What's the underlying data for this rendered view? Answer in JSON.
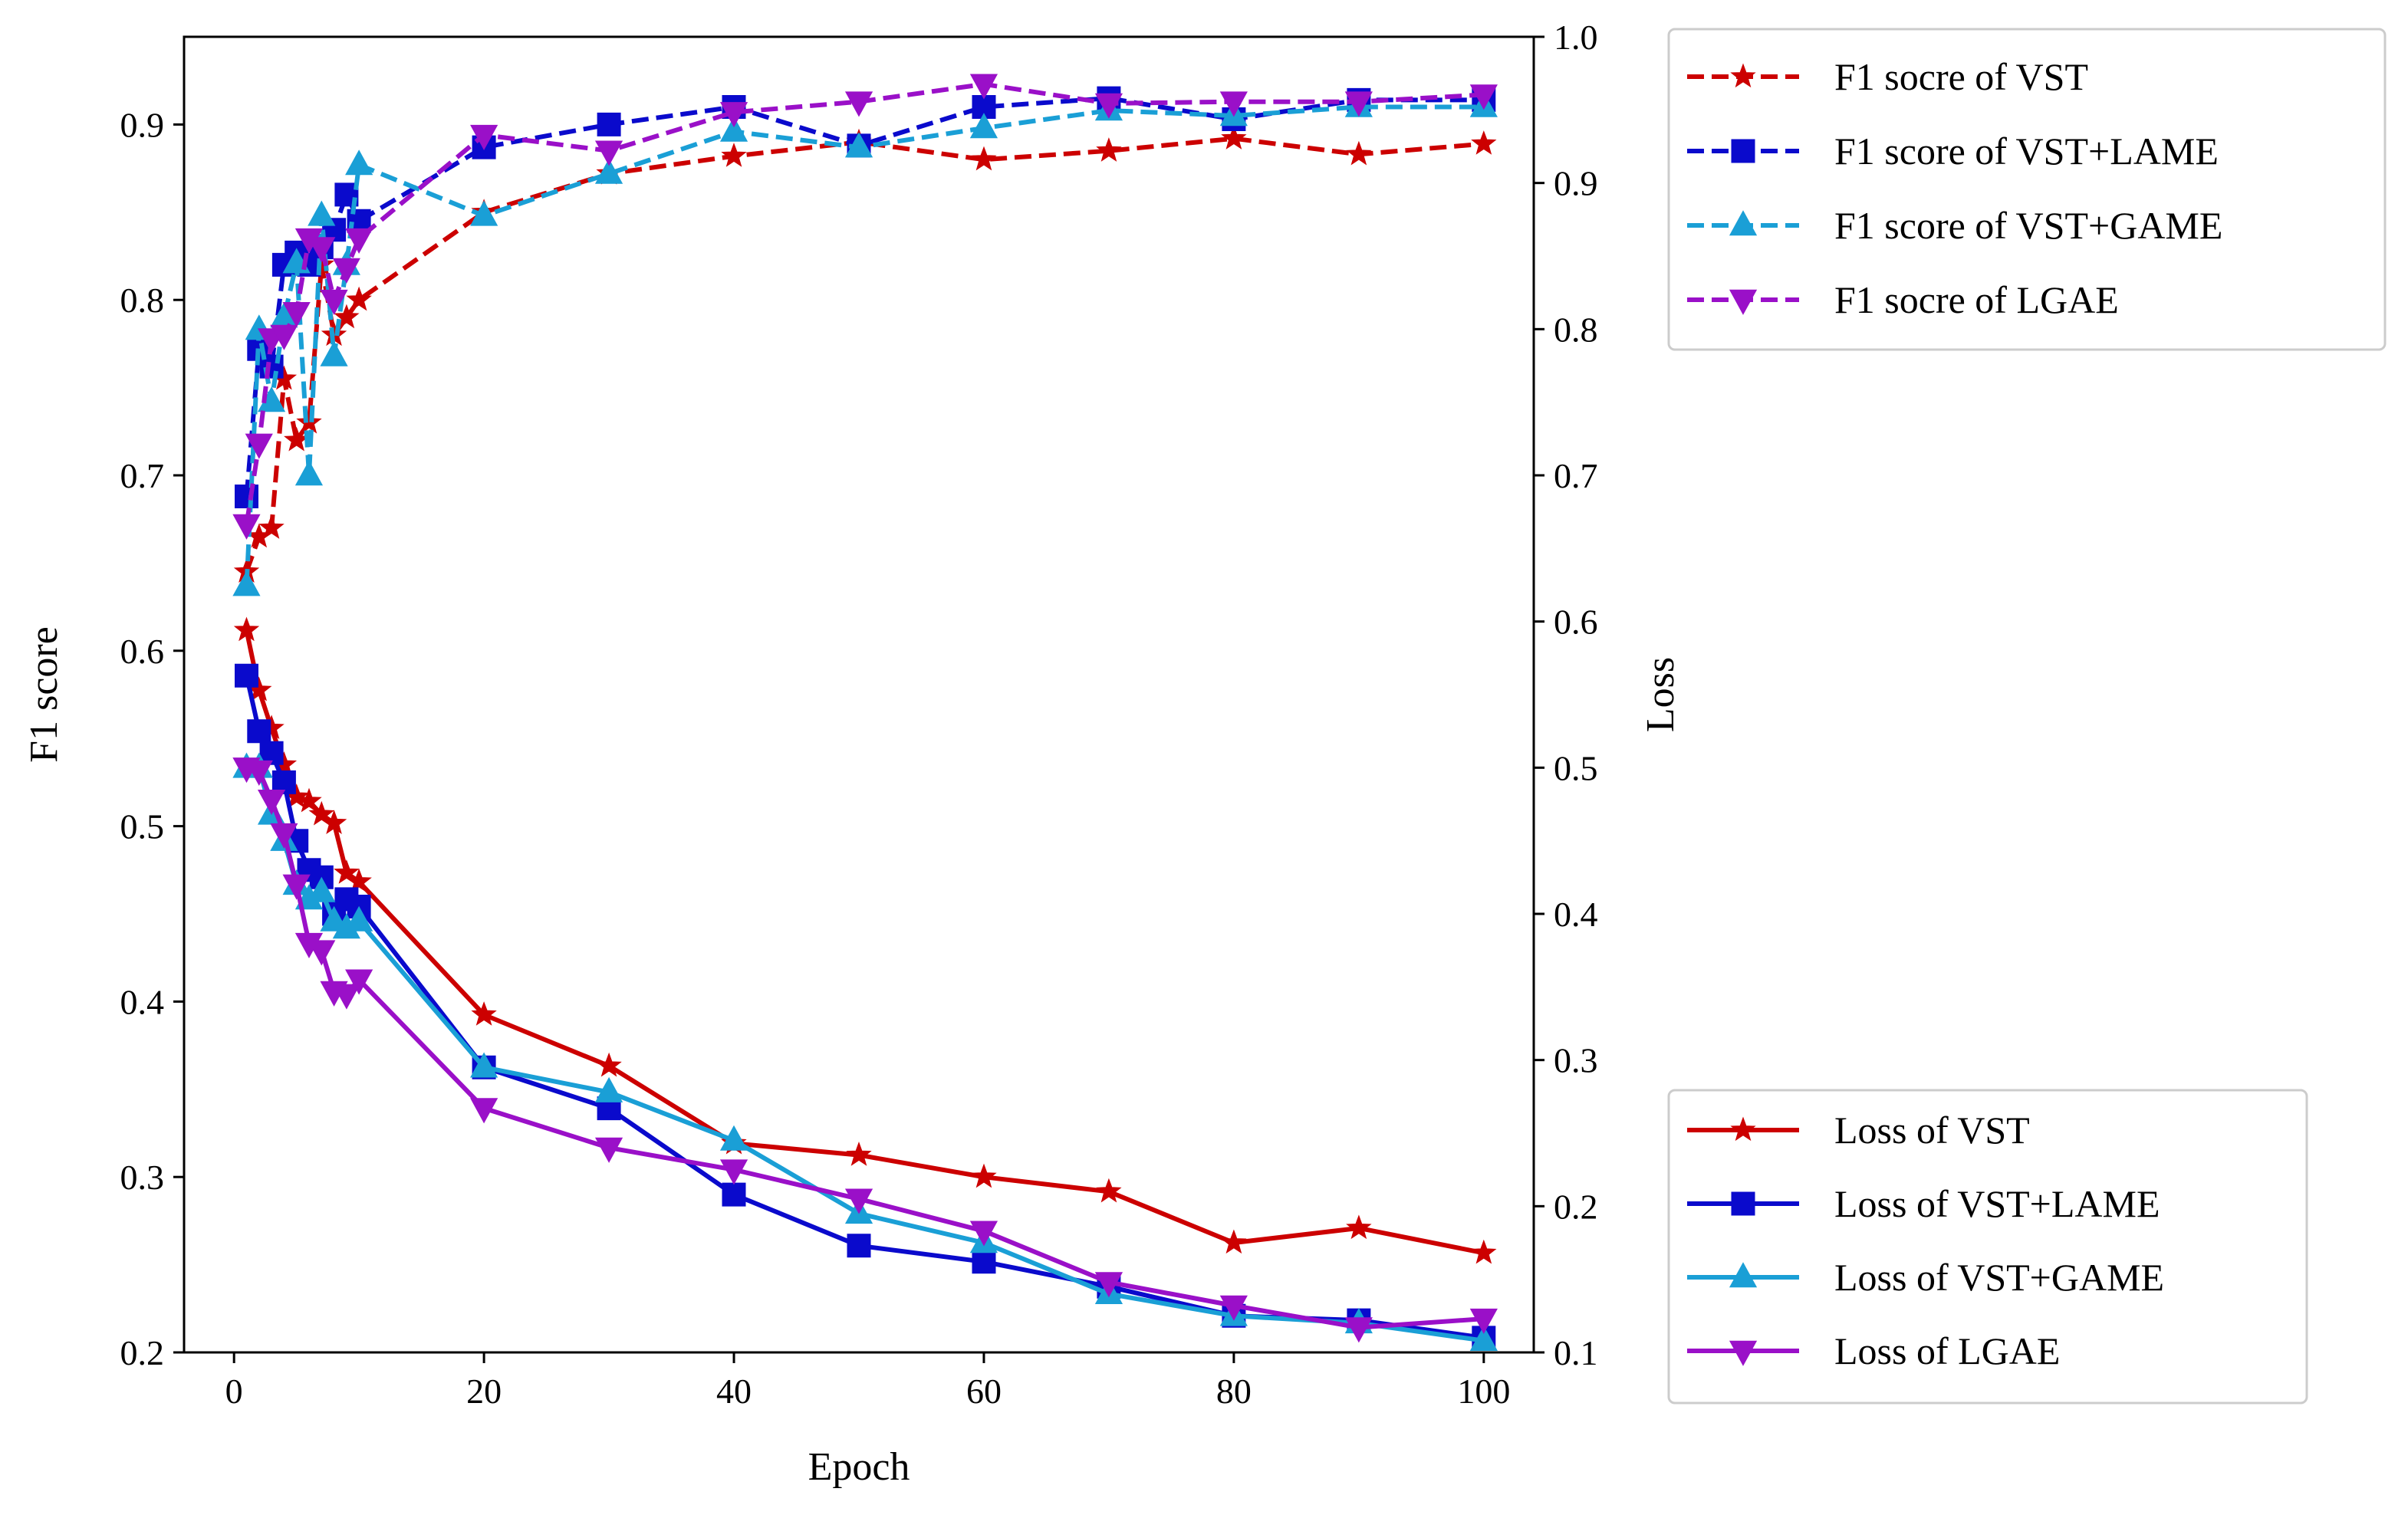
{
  "chart_data": {
    "type": "line",
    "x_axis": {
      "label": "Epoch",
      "range": [
        -4,
        104
      ],
      "ticks": [
        0,
        20,
        40,
        60,
        80,
        100
      ],
      "tick_labels": [
        "0",
        "20",
        "40",
        "60",
        "80",
        "100"
      ]
    },
    "y_axis_left": {
      "label": "F1 score",
      "range": [
        0.2,
        0.95
      ],
      "ticks": [
        0.2,
        0.3,
        0.4,
        0.5,
        0.6,
        0.7,
        0.8,
        0.9
      ],
      "tick_labels": [
        "0.2",
        "0.3",
        "0.4",
        "0.5",
        "0.6",
        "0.7",
        "0.8",
        "0.9"
      ]
    },
    "y_axis_right": {
      "label": "Loss",
      "range": [
        0.1,
        1.0
      ],
      "ticks": [
        0.1,
        0.2,
        0.3,
        0.4,
        0.5,
        0.6,
        0.7,
        0.8,
        0.9,
        1.0
      ],
      "tick_labels": [
        "0.1",
        "0.2",
        "0.3",
        "0.4",
        "0.5",
        "0.6",
        "0.7",
        "0.8",
        "0.9",
        "1.0"
      ]
    },
    "x": [
      1,
      2,
      3,
      4,
      5,
      6,
      7,
      8,
      9,
      10,
      20,
      30,
      40,
      50,
      60,
      70,
      80,
      90,
      100
    ],
    "f1_series": [
      {
        "name": "F1 socre of VST",
        "axis": "left",
        "color": "#cc0000",
        "style": "dashed",
        "marker": "star",
        "values": [
          0.645,
          0.665,
          0.67,
          0.755,
          0.72,
          0.73,
          0.82,
          0.78,
          0.79,
          0.8,
          0.85,
          0.872,
          0.882,
          0.89,
          0.88,
          0.885,
          0.892,
          0.883,
          0.889
        ]
      },
      {
        "name": "F1 score of VST+LAME",
        "axis": "left",
        "color": "#0a0acc",
        "style": "dashed",
        "marker": "square",
        "values": [
          0.688,
          0.772,
          0.762,
          0.82,
          0.827,
          0.82,
          0.83,
          0.84,
          0.86,
          0.845,
          0.887,
          0.9,
          0.91,
          0.888,
          0.91,
          0.915,
          0.903,
          0.914,
          0.914
        ]
      },
      {
        "name": "F1 score of VST+GAME",
        "axis": "left",
        "color": "#1a9fd6",
        "style": "dashed",
        "marker": "triangle-up",
        "values": [
          0.637,
          0.783,
          0.742,
          0.79,
          0.821,
          0.7,
          0.848,
          0.768,
          0.82,
          0.877,
          0.848,
          0.872,
          0.896,
          0.887,
          0.898,
          0.908,
          0.905,
          0.91,
          0.91
        ]
      },
      {
        "name": "F1 socre of LGAE",
        "axis": "left",
        "color": "#9a10c8",
        "style": "dashed",
        "marker": "triangle-down",
        "values": [
          0.672,
          0.718,
          0.778,
          0.78,
          0.793,
          0.835,
          0.83,
          0.8,
          0.818,
          0.835,
          0.894,
          0.885,
          0.907,
          0.913,
          0.923,
          0.912,
          0.913,
          0.913,
          0.917
        ]
      }
    ],
    "loss_series": [
      {
        "name": "Loss of VST",
        "axis": "right",
        "color": "#cc0000",
        "style": "solid",
        "marker": "star",
        "values": [
          0.594,
          0.553,
          0.527,
          0.502,
          0.48,
          0.477,
          0.468,
          0.462,
          0.428,
          0.422,
          0.331,
          0.296,
          0.243,
          0.235,
          0.22,
          0.21,
          0.175,
          0.185,
          0.168
        ]
      },
      {
        "name": "Loss of VST+LAME",
        "axis": "right",
        "color": "#0a0acc",
        "style": "solid",
        "marker": "square",
        "values": [
          0.563,
          0.525,
          0.51,
          0.49,
          0.45,
          0.43,
          0.425,
          0.4,
          0.41,
          0.405,
          0.295,
          0.267,
          0.208,
          0.173,
          0.162,
          0.145,
          0.125,
          0.122,
          0.11
        ]
      },
      {
        "name": "Loss of VST+GAME",
        "axis": "right",
        "color": "#1a9fd6",
        "style": "solid",
        "marker": "triangle-up",
        "values": [
          0.5,
          0.5,
          0.468,
          0.45,
          0.42,
          0.41,
          0.415,
          0.395,
          0.39,
          0.395,
          0.295,
          0.278,
          0.245,
          0.195,
          0.175,
          0.14,
          0.125,
          0.12,
          0.108
        ]
      },
      {
        "name": "Loss of LGAE",
        "axis": "right",
        "color": "#9a10c8",
        "style": "solid",
        "marker": "triangle-down",
        "values": [
          0.5,
          0.498,
          0.478,
          0.455,
          0.42,
          0.38,
          0.375,
          0.347,
          0.345,
          0.355,
          0.267,
          0.24,
          0.225,
          0.205,
          0.183,
          0.148,
          0.132,
          0.117,
          0.123
        ]
      }
    ]
  }
}
